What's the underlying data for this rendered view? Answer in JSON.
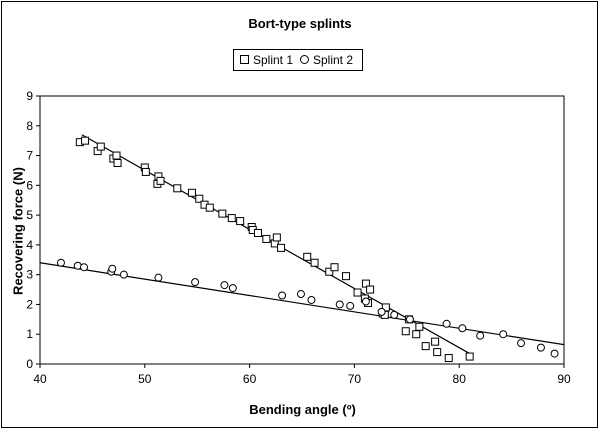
{
  "chart_data": {
    "type": "scatter",
    "title": "Bort-type splints",
    "xlabel": "Bending angle (º)",
    "ylabel": "Recovering force (N)",
    "xlim": [
      40,
      90
    ],
    "ylim": [
      0,
      9
    ],
    "xticks": [
      "40",
      "50",
      "60",
      "70",
      "80",
      "90"
    ],
    "yticks": [
      "0",
      "1",
      "2",
      "3",
      "4",
      "5",
      "6",
      "7",
      "8",
      "9"
    ],
    "grid": false,
    "legend_position": "top-center",
    "series": [
      {
        "name": "Splint 1",
        "marker": "square",
        "points": [
          [
            43.8,
            7.45
          ],
          [
            44.3,
            7.5
          ],
          [
            45.5,
            7.15
          ],
          [
            45.8,
            7.3
          ],
          [
            47,
            6.9
          ],
          [
            47.3,
            7.0
          ],
          [
            47.4,
            6.75
          ],
          [
            50,
            6.6
          ],
          [
            50.1,
            6.45
          ],
          [
            51.2,
            6.05
          ],
          [
            51.3,
            6.3
          ],
          [
            51.5,
            6.15
          ],
          [
            53.1,
            5.9
          ],
          [
            54.5,
            5.75
          ],
          [
            55.2,
            5.55
          ],
          [
            55.7,
            5.35
          ],
          [
            56.2,
            5.25
          ],
          [
            57.4,
            5.05
          ],
          [
            58.3,
            4.9
          ],
          [
            59.1,
            4.8
          ],
          [
            60.2,
            4.6
          ],
          [
            60.3,
            4.5
          ],
          [
            60.8,
            4.4
          ],
          [
            61.6,
            4.2
          ],
          [
            62.4,
            4.05
          ],
          [
            62.6,
            4.25
          ],
          [
            63,
            3.9
          ],
          [
            65.5,
            3.6
          ],
          [
            66.2,
            3.4
          ],
          [
            67.6,
            3.1
          ],
          [
            68.1,
            3.25
          ],
          [
            69.2,
            2.95
          ],
          [
            70.3,
            2.4
          ],
          [
            71,
            2.2
          ],
          [
            71.1,
            2.7
          ],
          [
            71.3,
            2.05
          ],
          [
            71.5,
            2.5
          ],
          [
            72.7,
            1.7
          ],
          [
            72.9,
            1.65
          ],
          [
            73,
            1.9
          ],
          [
            74.9,
            1.1
          ],
          [
            75.2,
            1.5
          ],
          [
            75.9,
            1.0
          ],
          [
            76.2,
            1.25
          ],
          [
            76.8,
            0.6
          ],
          [
            77.7,
            0.75
          ],
          [
            77.9,
            0.4
          ],
          [
            79,
            0.2
          ],
          [
            81,
            0.25
          ]
        ]
      },
      {
        "name": "Splint 2",
        "marker": "circle",
        "points": [
          [
            42,
            3.4
          ],
          [
            43.6,
            3.3
          ],
          [
            44.2,
            3.25
          ],
          [
            46.8,
            3.1
          ],
          [
            46.9,
            3.2
          ],
          [
            48,
            3.0
          ],
          [
            51.3,
            2.9
          ],
          [
            54.8,
            2.75
          ],
          [
            57.6,
            2.65
          ],
          [
            58.4,
            2.55
          ],
          [
            63.1,
            2.3
          ],
          [
            64.9,
            2.35
          ],
          [
            65.9,
            2.15
          ],
          [
            68.6,
            2.0
          ],
          [
            69.6,
            1.95
          ],
          [
            71.1,
            2.1
          ],
          [
            72.6,
            1.75
          ],
          [
            73.8,
            1.65
          ],
          [
            75.3,
            1.5
          ],
          [
            78.8,
            1.35
          ],
          [
            80.3,
            1.2
          ],
          [
            82,
            0.95
          ],
          [
            84.2,
            1.0
          ],
          [
            85.9,
            0.7
          ],
          [
            87.8,
            0.55
          ],
          [
            89.1,
            0.35
          ]
        ]
      }
    ],
    "trendlines": [
      {
        "series": "Splint 1",
        "x": [
          44,
          81
        ],
        "y": [
          7.7,
          0.35
        ]
      },
      {
        "series": "Splint 2",
        "x": [
          40,
          90
        ],
        "y": [
          3.4,
          0.65
        ]
      }
    ]
  }
}
